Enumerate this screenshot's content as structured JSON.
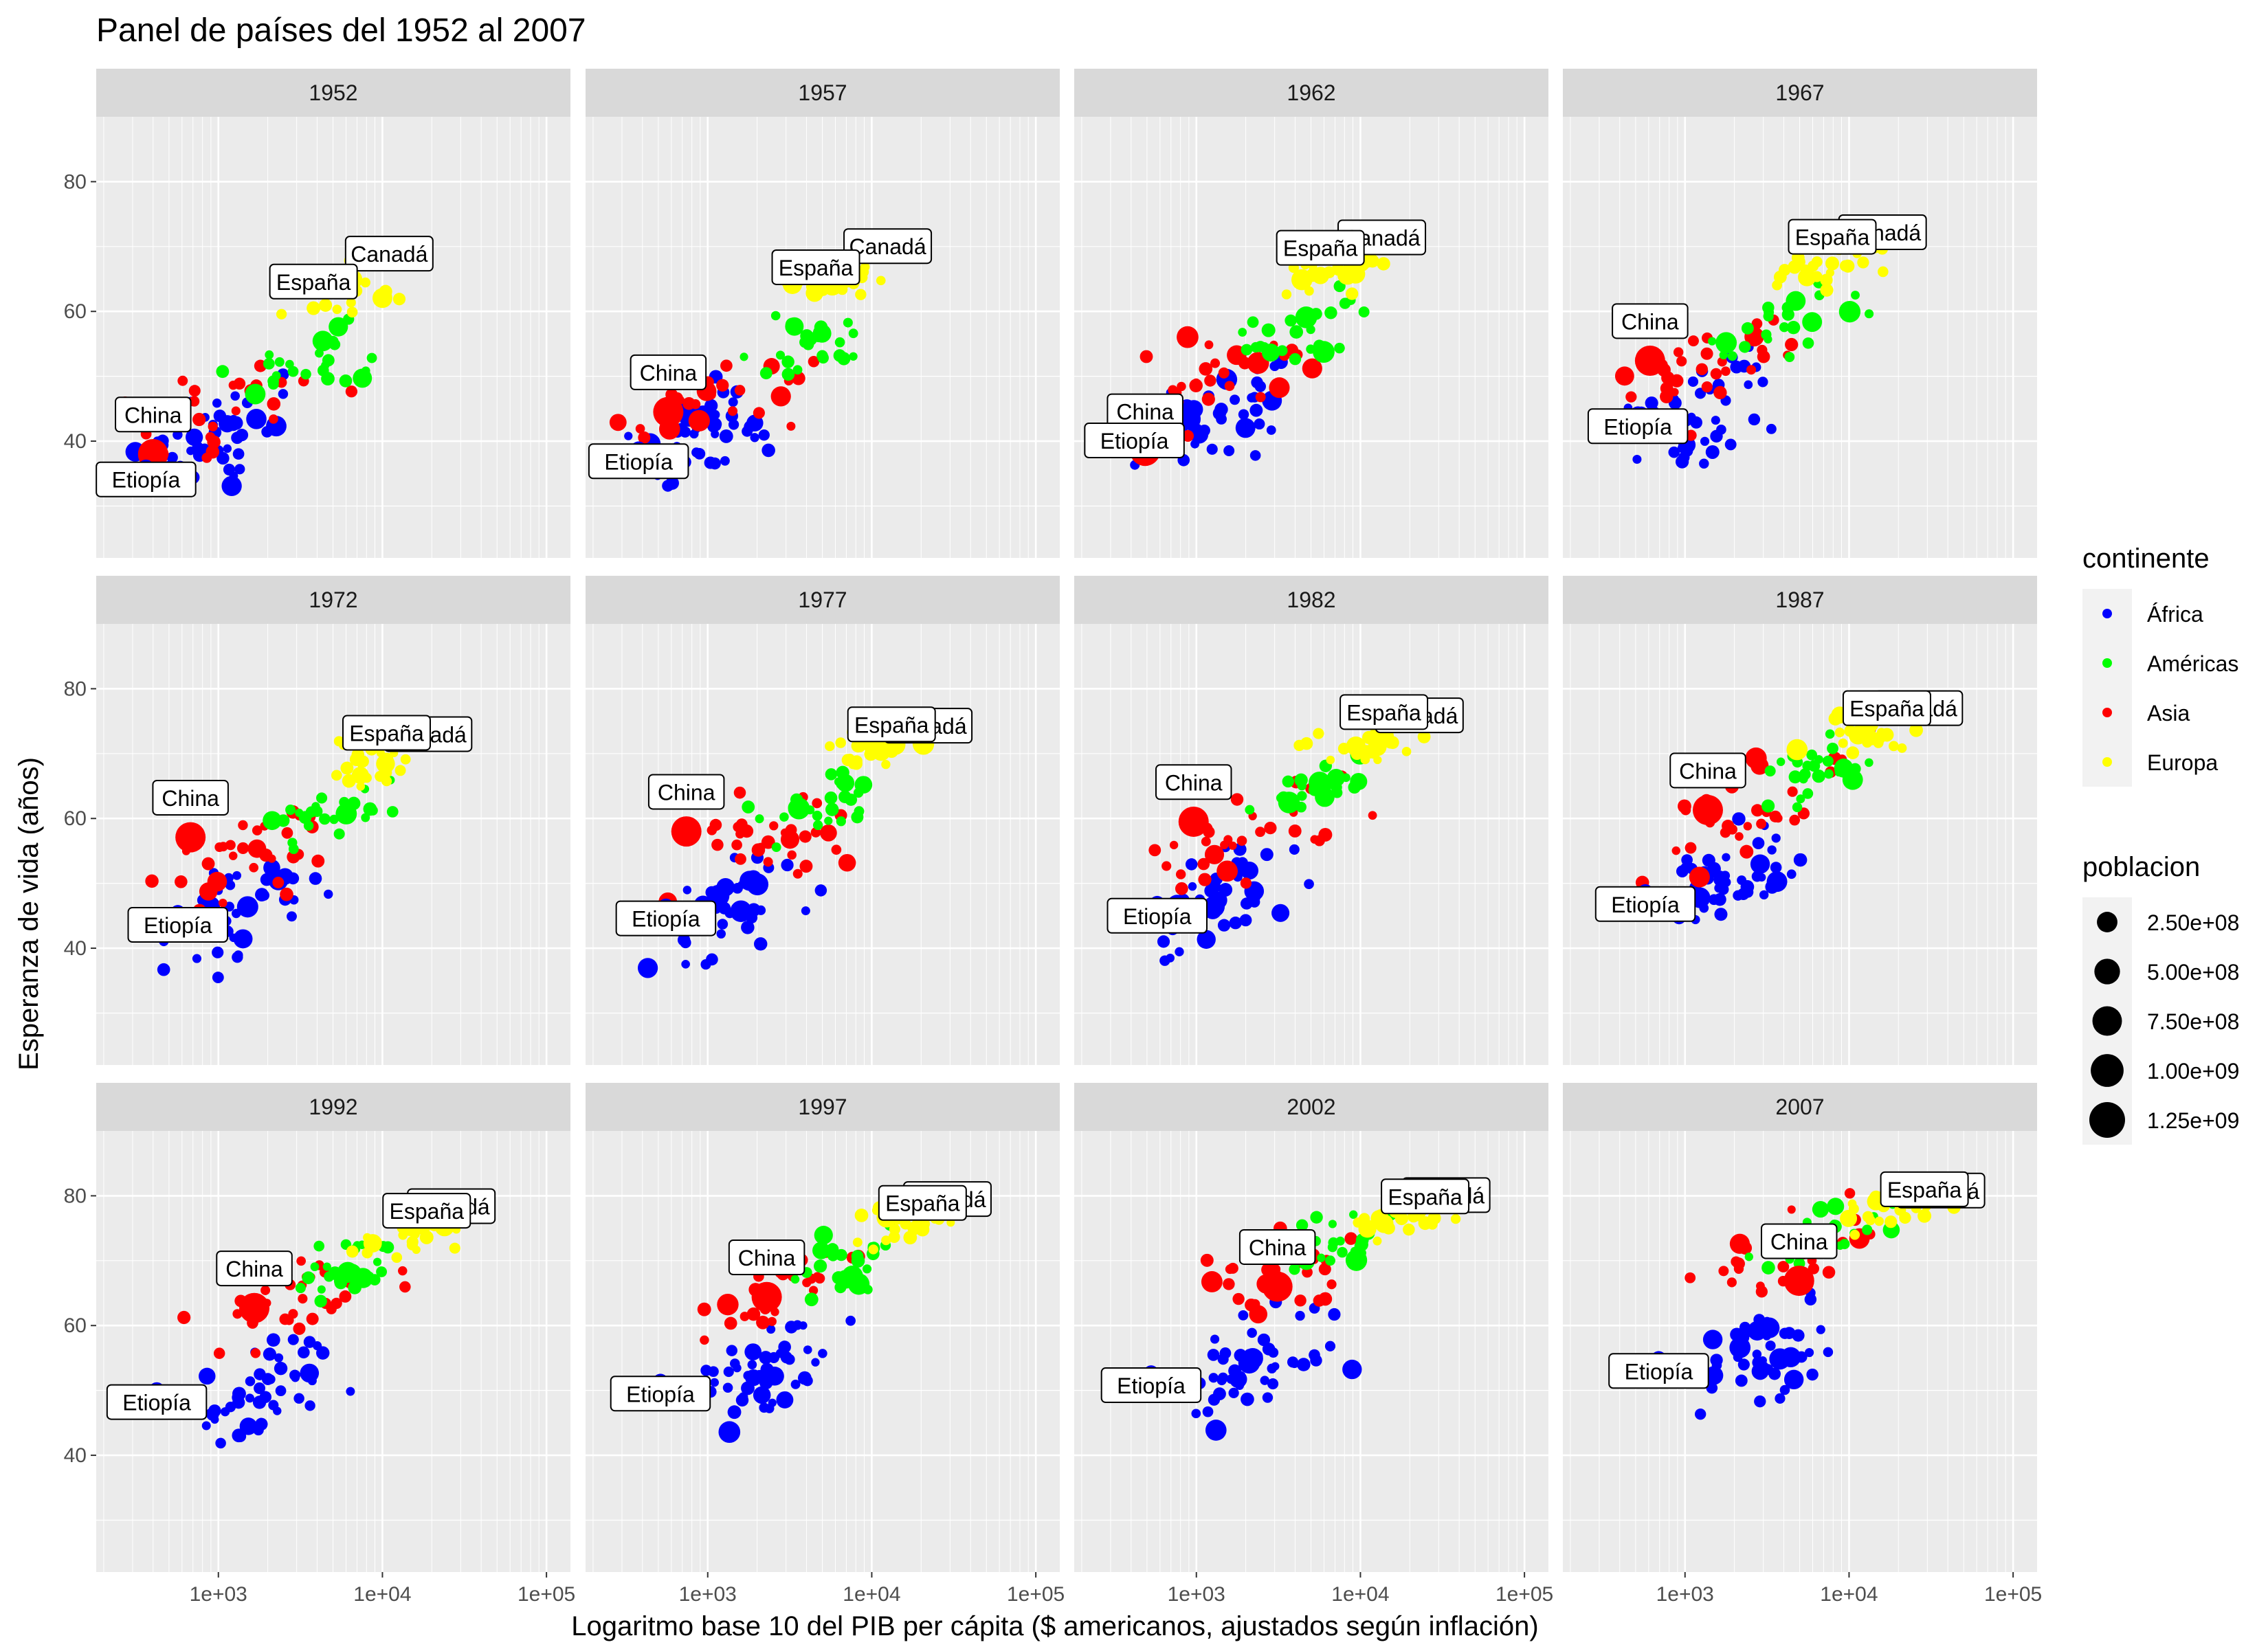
{
  "chart_data": {
    "type": "scatter",
    "title": "Panel de países del 1952 al 2007",
    "xlabel": "Logaritmo base 10 del PIB per cápita ($ americanos, ajustados según inflación)",
    "ylabel": "Esperanza de vida (años)",
    "x_scale": "log10",
    "xlim": [
      180,
      140000
    ],
    "ylim": [
      22,
      90
    ],
    "x_ticks": [
      1000,
      10000,
      100000
    ],
    "x_tick_labels": [
      "1e+03",
      "1e+04",
      "1e+05"
    ],
    "y_ticks": [
      40,
      60,
      80
    ],
    "y_tick_labels": [
      "40",
      "60",
      "80"
    ],
    "grid": true,
    "facet_by": "year",
    "facets": [
      "1952",
      "1957",
      "1962",
      "1967",
      "1972",
      "1977",
      "1982",
      "1987",
      "1992",
      "1997",
      "2002",
      "2007"
    ],
    "color_legend": {
      "title": "continente",
      "position": "right",
      "entries": [
        {
          "label": "África",
          "color": "#0000ff"
        },
        {
          "label": "Américas",
          "color": "#00ff00"
        },
        {
          "label": "Asia",
          "color": "#ff0000"
        },
        {
          "label": "Europa",
          "color": "#ffff00"
        }
      ]
    },
    "size_legend": {
      "title": "poblacion",
      "entries": [
        {
          "label": "2.50e+08",
          "value": 250000000
        },
        {
          "label": "5.00e+08",
          "value": 500000000
        },
        {
          "label": "7.50e+08",
          "value": 750000000
        },
        {
          "label": "1.00e+09",
          "value": 1000000000
        },
        {
          "label": "1.25e+09",
          "value": 1250000000
        }
      ]
    },
    "labels": {
      "1952": [
        {
          "text": "China",
          "x": 400,
          "y": 44
        },
        {
          "text": "Etiopía",
          "x": 362,
          "y": 34.0
        },
        {
          "text": "España",
          "x": 3800,
          "y": 64.5
        },
        {
          "text": "Canadá",
          "x": 11000,
          "y": 68.8
        }
      ],
      "1957": [
        {
          "text": "China",
          "x": 575,
          "y": 50.5
        },
        {
          "text": "Etiopía",
          "x": 379,
          "y": 36.8
        },
        {
          "text": "España",
          "x": 4560,
          "y": 66.7
        },
        {
          "text": "Canadá",
          "x": 12500,
          "y": 69.96
        }
      ],
      "1962": [
        {
          "text": "China",
          "x": 487,
          "y": 44.5
        },
        {
          "text": "Etiopía",
          "x": 419,
          "y": 40.0
        },
        {
          "text": "España",
          "x": 5700,
          "y": 69.7
        },
        {
          "text": "Canadá",
          "x": 13500,
          "y": 71.3
        }
      ],
      "1967": [
        {
          "text": "China",
          "x": 612,
          "y": 58.4
        },
        {
          "text": "Etiopía",
          "x": 516,
          "y": 42.2
        },
        {
          "text": "España",
          "x": 7900,
          "y": 71.4
        },
        {
          "text": "Canadá",
          "x": 16000,
          "y": 72.1
        }
      ],
      "1972": [
        {
          "text": "China",
          "x": 676,
          "y": 63.1
        },
        {
          "text": "Etiopía",
          "x": 566,
          "y": 43.5
        },
        {
          "text": "España",
          "x": 10600,
          "y": 73.1
        },
        {
          "text": "Canadá",
          "x": 18970,
          "y": 72.9
        }
      ],
      "1977": [
        {
          "text": "China",
          "x": 741,
          "y": 64.0
        },
        {
          "text": "Etiopía",
          "x": 556,
          "y": 44.5
        },
        {
          "text": "España",
          "x": 13200,
          "y": 74.4
        },
        {
          "text": "Canadá",
          "x": 22090,
          "y": 74.2
        }
      ],
      "1982": [
        {
          "text": "China",
          "x": 962,
          "y": 65.5
        },
        {
          "text": "Etiopía",
          "x": 577,
          "y": 44.9
        },
        {
          "text": "España",
          "x": 13900,
          "y": 76.3
        },
        {
          "text": "Canadá",
          "x": 22900,
          "y": 75.8
        }
      ],
      "1987": [
        {
          "text": "China",
          "x": 1378,
          "y": 67.3
        },
        {
          "text": "Etiopía",
          "x": 573,
          "y": 46.7
        },
        {
          "text": "España",
          "x": 17000,
          "y": 76.9
        },
        {
          "text": "Canadá",
          "x": 26600,
          "y": 76.9
        }
      ],
      "1992": [
        {
          "text": "China",
          "x": 1656,
          "y": 68.7
        },
        {
          "text": "Etiopía",
          "x": 421,
          "y": 48.1
        },
        {
          "text": "España",
          "x": 18600,
          "y": 77.6
        },
        {
          "text": "Canadá",
          "x": 26300,
          "y": 78.3
        }
      ],
      "1997": [
        {
          "text": "China",
          "x": 2289,
          "y": 70.4
        },
        {
          "text": "Etiopía",
          "x": 515,
          "y": 49.4
        },
        {
          "text": "España",
          "x": 20400,
          "y": 78.8
        },
        {
          "text": "Canadá",
          "x": 28900,
          "y": 79.4
        }
      ],
      "2002": [
        {
          "text": "China",
          "x": 3119,
          "y": 72.0
        },
        {
          "text": "Etiopía",
          "x": 530,
          "y": 50.7
        },
        {
          "text": "España",
          "x": 24800,
          "y": 79.8
        },
        {
          "text": "Canadá",
          "x": 33300,
          "y": 80.0
        }
      ],
      "2007": [
        {
          "text": "China",
          "x": 4959,
          "y": 72.9
        },
        {
          "text": "Etiopía",
          "x": 691,
          "y": 52.9
        },
        {
          "text": "España",
          "x": 28800,
          "y": 80.9
        },
        {
          "text": "Canadá",
          "x": 36300,
          "y": 80.7
        }
      ]
    }
  }
}
